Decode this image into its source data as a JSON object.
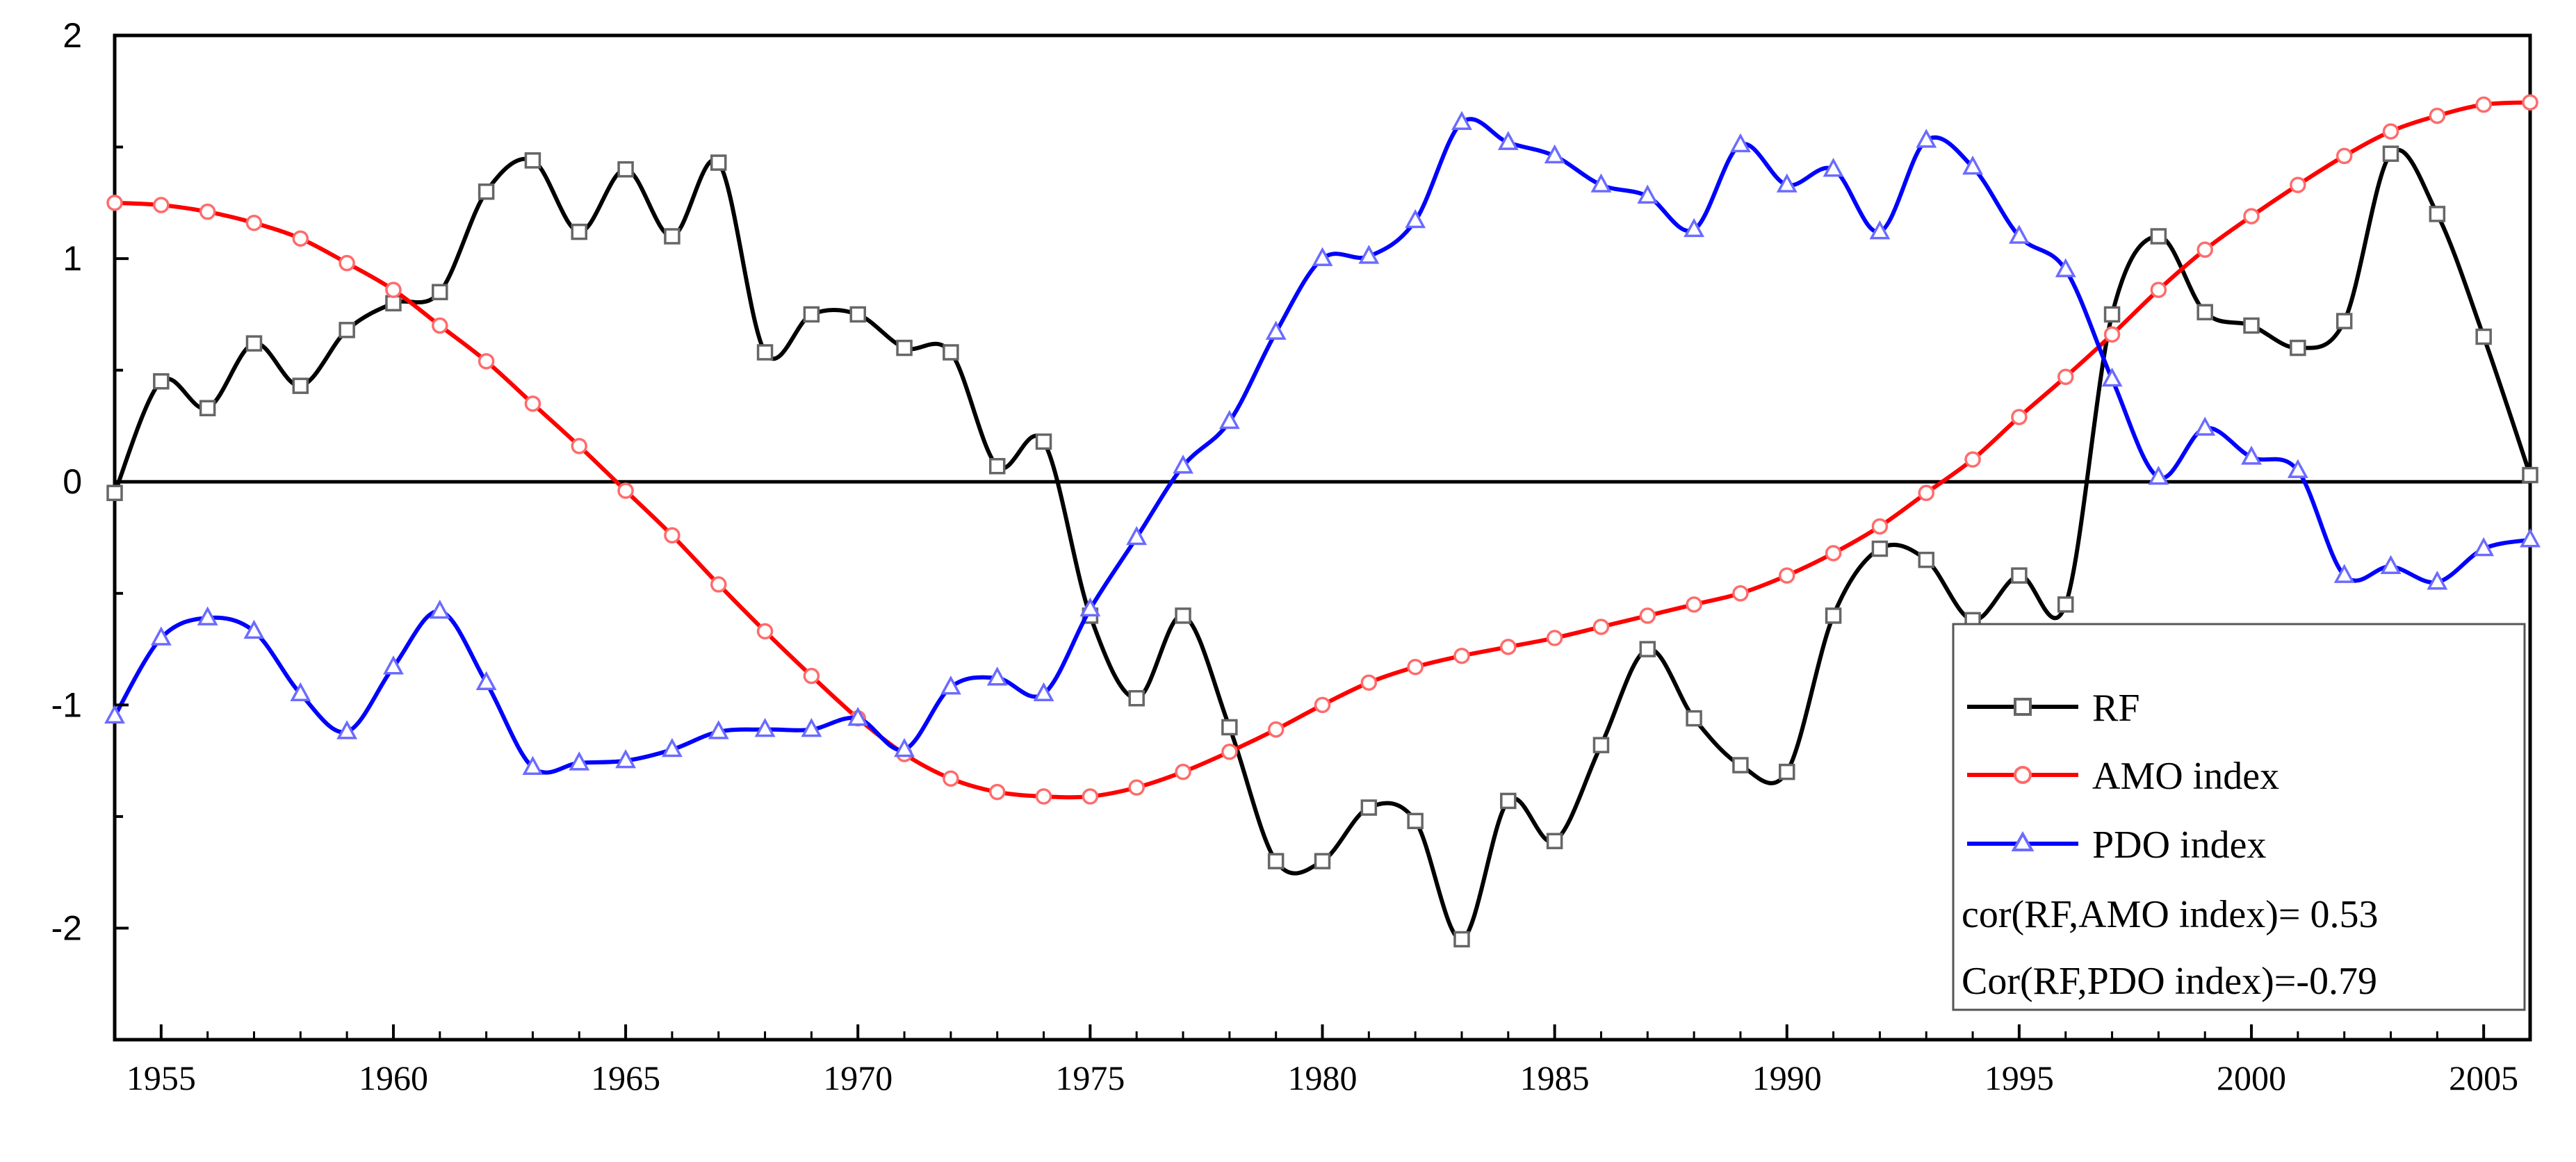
{
  "chart_data": {
    "type": "line",
    "xlim": [
      1954,
      2006
    ],
    "ylim": [
      -2.5,
      2
    ],
    "grid": false,
    "zero_line": true,
    "legend_position": "bottom-right",
    "x_ticks": [
      1955,
      1960,
      1965,
      1970,
      1975,
      1980,
      1985,
      1990,
      1995,
      2000,
      2005
    ],
    "x_tick_labels": [
      "1955",
      "1960",
      "1965",
      "1970",
      "1975",
      "1980",
      "1985",
      "1990",
      "1995",
      "2000",
      "2005"
    ],
    "y_ticks": [
      -2,
      -1,
      0,
      1,
      2
    ],
    "y_tick_labels": [
      "-2",
      "-1",
      "0",
      "1",
      "2"
    ],
    "series": [
      {
        "name": "RF",
        "color": "#000000",
        "marker": "square",
        "x": [
          1954,
          1955,
          1956,
          1957,
          1958,
          1959,
          1960,
          1961,
          1962,
          1963,
          1964,
          1965,
          1966,
          1967,
          1968,
          1969,
          1970,
          1971,
          1972,
          1973,
          1974,
          1975,
          1976,
          1977,
          1978,
          1979,
          1980,
          1981,
          1982,
          1983,
          1984,
          1985,
          1986,
          1987,
          1988,
          1989,
          1990,
          1991,
          1992,
          1993,
          1994,
          1995,
          1996,
          1997,
          1998,
          1999,
          2000,
          2001,
          2002,
          2003,
          2004,
          2005,
          2006
        ],
        "y": [
          -0.05,
          0.45,
          0.33,
          0.62,
          0.43,
          0.68,
          0.8,
          0.85,
          1.3,
          1.44,
          1.12,
          1.4,
          1.1,
          1.43,
          0.58,
          0.75,
          0.75,
          0.6,
          0.58,
          0.07,
          0.18,
          -0.6,
          -0.97,
          -0.6,
          -1.1,
          -1.7,
          -1.7,
          -1.46,
          -1.52,
          -2.05,
          -1.43,
          -1.61,
          -1.18,
          -0.75,
          -1.06,
          -1.27,
          -1.3,
          -0.6,
          -0.3,
          -0.35,
          -0.62,
          -0.42,
          -0.55,
          0.75,
          1.1,
          0.76,
          0.7,
          0.6,
          0.72,
          1.47,
          1.2,
          0.65,
          0.03
        ]
      },
      {
        "name": "AMO index",
        "color": "#ff0000",
        "marker": "circle",
        "x": [
          1954,
          1955,
          1956,
          1957,
          1958,
          1959,
          1960,
          1961,
          1962,
          1963,
          1964,
          1965,
          1966,
          1967,
          1968,
          1969,
          1970,
          1971,
          1972,
          1973,
          1974,
          1975,
          1976,
          1977,
          1978,
          1979,
          1980,
          1981,
          1982,
          1983,
          1984,
          1985,
          1986,
          1987,
          1988,
          1989,
          1990,
          1991,
          1992,
          1993,
          1994,
          1995,
          1996,
          1997,
          1998,
          1999,
          2000,
          2001,
          2002,
          2003,
          2004,
          2005,
          2006
        ],
        "y": [
          1.25,
          1.24,
          1.21,
          1.16,
          1.09,
          0.98,
          0.86,
          0.7,
          0.54,
          0.35,
          0.16,
          -0.04,
          -0.24,
          -0.46,
          -0.67,
          -0.87,
          -1.06,
          -1.22,
          -1.33,
          -1.39,
          -1.41,
          -1.41,
          -1.37,
          -1.3,
          -1.21,
          -1.11,
          -1.0,
          -0.9,
          -0.83,
          -0.78,
          -0.74,
          -0.7,
          -0.65,
          -0.6,
          -0.55,
          -0.5,
          -0.42,
          -0.32,
          -0.2,
          -0.05,
          0.1,
          0.29,
          0.47,
          0.66,
          0.86,
          1.04,
          1.19,
          1.33,
          1.46,
          1.57,
          1.64,
          1.69,
          1.7
        ]
      },
      {
        "name": "PDO index",
        "color": "#0000ff",
        "marker": "triangle",
        "x": [
          1954,
          1955,
          1956,
          1957,
          1958,
          1959,
          1960,
          1961,
          1962,
          1963,
          1964,
          1965,
          1966,
          1967,
          1968,
          1969,
          1970,
          1971,
          1972,
          1973,
          1974,
          1975,
          1976,
          1977,
          1978,
          1979,
          1980,
          1981,
          1982,
          1983,
          1984,
          1985,
          1986,
          1987,
          1988,
          1989,
          1990,
          1991,
          1992,
          1993,
          1994,
          1995,
          1996,
          1997,
          1998,
          1999,
          2000,
          2001,
          2002,
          2003,
          2004,
          2005,
          2006
        ],
        "y": [
          -1.05,
          -0.7,
          -0.61,
          -0.67,
          -0.95,
          -1.12,
          -0.83,
          -0.58,
          -0.9,
          -1.28,
          -1.26,
          -1.25,
          -1.2,
          -1.12,
          -1.11,
          -1.11,
          -1.06,
          -1.2,
          -0.92,
          -0.88,
          -0.95,
          -0.57,
          -0.25,
          0.07,
          0.27,
          0.67,
          1.0,
          1.01,
          1.17,
          1.61,
          1.52,
          1.46,
          1.33,
          1.28,
          1.13,
          1.51,
          1.33,
          1.4,
          1.12,
          1.53,
          1.41,
          1.1,
          0.95,
          0.46,
          0.02,
          0.24,
          0.11,
          0.05,
          -0.42,
          -0.38,
          -0.45,
          -0.3,
          -0.26
        ]
      }
    ],
    "legend": {
      "entries": [
        "RF",
        "AMO index",
        "PDO index"
      ],
      "annotations": [
        "cor(RF,AMO index)= 0.53",
        "Cor(RF,PDO index)=-0.79"
      ]
    }
  }
}
